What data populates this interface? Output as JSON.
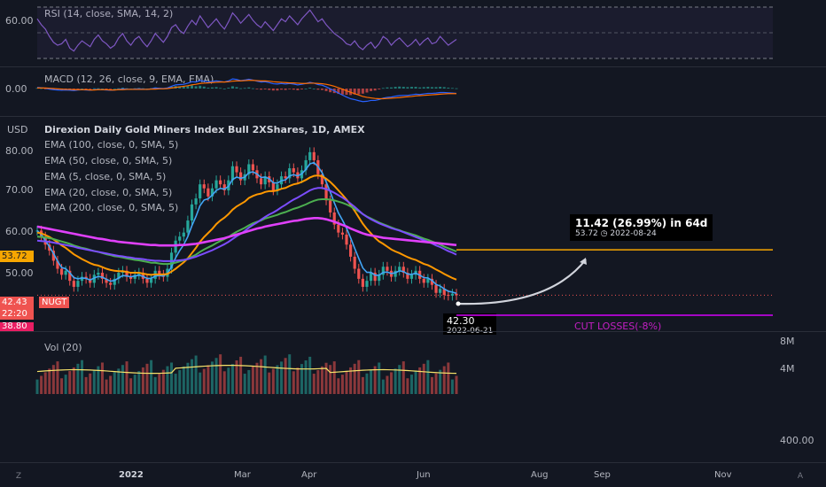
{
  "rsi": {
    "label": "RSI (14, close, SMA, 14, 2)",
    "tick": "60.00",
    "color": "#7e57c2",
    "values": [
      62,
      58,
      55,
      50,
      46,
      44,
      45,
      48,
      42,
      40,
      44,
      47,
      45,
      43,
      48,
      51,
      47,
      45,
      42,
      44,
      49,
      52,
      47,
      44,
      48,
      50,
      46,
      43,
      47,
      52,
      49,
      46,
      50,
      56,
      58,
      54,
      52,
      57,
      61,
      58,
      64,
      60,
      56,
      59,
      62,
      58,
      55,
      60,
      66,
      63,
      59,
      62,
      65,
      61,
      58,
      56,
      60,
      57,
      54,
      58,
      62,
      60,
      64,
      61,
      58,
      62,
      65,
      68,
      64,
      60,
      62,
      58,
      55,
      52,
      50,
      48,
      45,
      44,
      47,
      43,
      41,
      44,
      46,
      42,
      45,
      50,
      48,
      44,
      47,
      49,
      46,
      43,
      45,
      48,
      44,
      47,
      49,
      45,
      46,
      50,
      47,
      44,
      46,
      48
    ]
  },
  "macd": {
    "label": "MACD (12, 26, close, 9, EMA, EMA)",
    "tick": "0.00",
    "macd_color": "#2962ff",
    "signal_color": "#ff6d00",
    "macd": [
      0.4,
      0.3,
      0.1,
      -0.2,
      -0.4,
      -0.5,
      -0.6,
      -0.5,
      -0.6,
      -0.7,
      -0.5,
      -0.4,
      -0.5,
      -0.6,
      -0.4,
      -0.3,
      -0.4,
      -0.5,
      -0.6,
      -0.5,
      -0.3,
      -0.1,
      -0.2,
      -0.3,
      -0.2,
      -0.1,
      -0.2,
      -0.3,
      -0.1,
      0.2,
      0.1,
      0.0,
      0.2,
      0.8,
      1.3,
      1.4,
      1.5,
      1.9,
      2.4,
      2.3,
      2.8,
      2.6,
      2.3,
      2.5,
      2.7,
      2.5,
      2.3,
      2.7,
      3.4,
      3.2,
      2.8,
      3.0,
      3.3,
      3.0,
      2.6,
      2.3,
      2.4,
      2.1,
      1.7,
      1.6,
      1.8,
      1.6,
      1.8,
      1.6,
      1.3,
      1.5,
      1.8,
      2.2,
      1.9,
      1.4,
      1.2,
      0.6,
      -0.1,
      -0.8,
      -1.6,
      -2.3,
      -3.0,
      -3.6,
      -3.9,
      -4.3,
      -4.6,
      -4.5,
      -4.2,
      -4.2,
      -3.9,
      -3.4,
      -3.1,
      -3.0,
      -2.7,
      -2.5,
      -2.4,
      -2.4,
      -2.2,
      -2.0,
      -2.1,
      -1.9,
      -1.7,
      -1.7,
      -1.6,
      -1.4,
      -1.4,
      -1.5,
      -1.6,
      -1.7
    ],
    "signal": [
      0.2,
      0.2,
      0.2,
      0.1,
      0.0,
      -0.1,
      -0.2,
      -0.3,
      -0.3,
      -0.4,
      -0.4,
      -0.4,
      -0.4,
      -0.5,
      -0.5,
      -0.4,
      -0.4,
      -0.4,
      -0.5,
      -0.5,
      -0.4,
      -0.4,
      -0.3,
      -0.3,
      -0.3,
      -0.3,
      -0.3,
      -0.3,
      -0.2,
      -0.2,
      -0.1,
      -0.1,
      0.0,
      0.2,
      0.4,
      0.6,
      0.8,
      1.0,
      1.3,
      1.5,
      1.8,
      1.9,
      2.0,
      2.1,
      2.2,
      2.3,
      2.3,
      2.4,
      2.6,
      2.7,
      2.7,
      2.8,
      2.9,
      2.9,
      2.8,
      2.7,
      2.7,
      2.6,
      2.4,
      2.3,
      2.2,
      2.1,
      2.0,
      2.0,
      1.9,
      1.8,
      1.8,
      1.9,
      1.9,
      1.8,
      1.7,
      1.5,
      1.2,
      0.8,
      0.3,
      -0.2,
      -0.8,
      -1.3,
      -1.8,
      -2.3,
      -2.8,
      -3.1,
      -3.3,
      -3.5,
      -3.6,
      -3.6,
      -3.5,
      -3.4,
      -3.3,
      -3.2,
      -3.0,
      -2.9,
      -2.8,
      -2.6,
      -2.5,
      -2.4,
      -2.3,
      -2.2,
      -2.1,
      -2.0,
      -1.9,
      -1.8,
      -1.8,
      -1.8
    ]
  },
  "main": {
    "unit_label": "USD",
    "title": "Direxion Daily Gold Miners Index Bull 2XShares, 1D, AMEX",
    "ema_labels": [
      "EMA (100, close, 0, SMA, 5)",
      "EMA (50, close, 0, SMA, 5)",
      "EMA (5, close, 0, SMA, 5)",
      "EMA (20, close, 0, SMA, 5)",
      "EMA (200, close, 0, SMA, 5)"
    ],
    "y_ticks": [
      "80.00",
      "70.00",
      "60.00",
      "50.00"
    ],
    "price_tags": {
      "target": {
        "text": "53.72",
        "color": "#f7a600"
      },
      "last": {
        "text": "42.43",
        "color": "#ef5350"
      },
      "countdown": {
        "text": "22:20",
        "color": "#ef5350"
      },
      "stop": {
        "text": "38.80",
        "color": "#e91e63"
      }
    },
    "symbol_badge": "NUGT",
    "low_label": "42.30",
    "low_date": "2022-06-21",
    "projection_tooltip": {
      "headline": "11.42 (26.99%) in 64d",
      "detail_price": "53.72",
      "detail_date": "2022-08-24"
    },
    "cut_losses_label": "CUT LOSSES(-8%)",
    "target_line_color": "#f7a600",
    "stop_line_color": "#d500f9"
  },
  "volume": {
    "label": "Vol (20)",
    "ticks": [
      "8M",
      "4M",
      "400.00"
    ],
    "ma_color": "#f7e36a"
  },
  "x_axis": {
    "labels": [
      "2022",
      "Mar",
      "Apr",
      "Jun",
      "Aug",
      "Sep",
      "Nov"
    ]
  },
  "chart_data": {
    "type": "line",
    "title": "Direxion Daily Gold Miners Index Bull 2XShares, 1D, AMEX",
    "ylabel": "USD",
    "ylim": [
      37,
      87
    ],
    "x_start": "2021-10-28",
    "series": [
      {
        "name": "Close",
        "color": "#42a5f5",
        "values": [
          58.5,
          57.0,
          55.0,
          53.5,
          51.0,
          49.0,
          47.5,
          48.5,
          46.0,
          44.5,
          46.0,
          47.0,
          46.5,
          45.5,
          47.5,
          48.0,
          46.5,
          45.5,
          45.0,
          46.5,
          48.0,
          48.5,
          47.0,
          46.5,
          47.5,
          48.0,
          46.5,
          45.5,
          46.5,
          48.5,
          47.5,
          47.0,
          49.0,
          53.0,
          56.0,
          57.0,
          58.0,
          61.0,
          65.0,
          66.5,
          70.0,
          69.0,
          67.0,
          69.0,
          71.0,
          70.0,
          68.5,
          71.0,
          74.5,
          73.0,
          71.0,
          72.5,
          75.0,
          73.5,
          71.5,
          70.0,
          72.0,
          70.5,
          68.5,
          70.0,
          72.0,
          71.5,
          74.0,
          73.0,
          71.5,
          73.5,
          76.0,
          78.0,
          76.0,
          72.5,
          70.0,
          66.0,
          63.0,
          60.0,
          58.0,
          57.5,
          55.0,
          52.0,
          49.0,
          46.5,
          44.5,
          46.0,
          48.0,
          46.0,
          47.5,
          49.5,
          48.5,
          47.0,
          48.5,
          49.5,
          48.0,
          46.5,
          47.5,
          48.5,
          46.5,
          45.5,
          46.5,
          45.0,
          43.0,
          44.0,
          42.5,
          42.3,
          42.8,
          42.4
        ]
      },
      {
        "name": "EMA (5, close, 0, SMA, 5)",
        "color": "#42a5f5",
        "values": [
          58.5,
          57.5,
          56.0,
          54.5,
          52.8,
          50.9,
          49.3,
          49.0,
          48.0,
          46.8,
          46.5,
          46.7,
          46.6,
          46.2,
          46.7,
          47.1,
          46.9,
          46.4,
          45.9,
          46.1,
          46.7,
          47.3,
          47.2,
          47.0,
          47.2,
          47.4,
          47.1,
          46.6,
          46.6,
          47.2,
          47.3,
          47.2,
          47.8,
          49.5,
          51.7,
          53.5,
          55.0,
          57.0,
          59.7,
          62.0,
          64.7,
          66.1,
          66.4,
          67.3,
          68.5,
          69.0,
          68.8,
          69.5,
          71.2,
          71.8,
          71.5,
          71.8,
          72.9,
          73.1,
          72.6,
          71.7,
          71.8,
          71.4,
          70.4,
          70.3,
          70.9,
          71.1,
          72.1,
          72.4,
          72.1,
          72.6,
          73.7,
          75.1,
          75.4,
          74.4,
          72.9,
          70.6,
          68.1,
          65.4,
          62.9,
          61.1,
          59.1,
          56.7,
          54.1,
          51.6,
          49.2,
          48.1,
          48.1,
          47.4,
          47.4,
          48.1,
          48.2,
          47.8,
          48.0,
          48.5,
          48.3,
          47.7,
          47.6,
          47.9,
          47.4,
          46.8,
          46.7,
          46.1,
          45.1,
          44.7,
          44.0,
          43.4,
          43.2,
          42.9
        ]
      },
      {
        "name": "EMA (20, close, 0, SMA, 5)",
        "color": "#ff9800",
        "values": [
          58.0,
          57.8,
          57.4,
          56.9,
          56.3,
          55.6,
          54.8,
          54.2,
          53.4,
          52.6,
          52.0,
          51.4,
          50.9,
          50.4,
          50.0,
          49.8,
          49.4,
          49.0,
          48.7,
          48.5,
          48.4,
          48.4,
          48.2,
          48.0,
          48.0,
          48.0,
          47.8,
          47.6,
          47.5,
          47.6,
          47.6,
          47.6,
          47.7,
          48.3,
          49.0,
          49.8,
          50.6,
          51.6,
          52.9,
          54.2,
          55.7,
          56.9,
          57.9,
          58.9,
          60.1,
          61.0,
          61.7,
          62.6,
          63.7,
          64.5,
          65.1,
          65.7,
          66.6,
          67.1,
          67.5,
          67.7,
          68.1,
          68.3,
          68.3,
          68.5,
          68.9,
          69.1,
          69.6,
          70.0,
          70.2,
          70.6,
          71.1,
          71.7,
          72.1,
          72.2,
          72.0,
          71.4,
          70.6,
          69.6,
          68.5,
          67.4,
          66.2,
          64.9,
          63.4,
          61.8,
          60.2,
          58.9,
          57.8,
          56.7,
          55.8,
          55.2,
          54.5,
          53.8,
          53.3,
          52.9,
          52.4,
          51.9,
          51.5,
          51.2,
          50.7,
          50.2,
          49.9,
          49.4,
          48.8,
          48.3,
          47.7,
          47.2,
          46.7,
          46.3
        ]
      },
      {
        "name": "EMA (50, close, 0, SMA, 5)",
        "color": "#4caf50",
        "values": [
          57.0,
          56.9,
          56.8,
          56.6,
          56.4,
          56.1,
          55.8,
          55.5,
          55.2,
          54.8,
          54.5,
          54.2,
          54.0,
          53.7,
          53.4,
          53.2,
          52.9,
          52.6,
          52.4,
          52.1,
          52.0,
          51.8,
          51.6,
          51.4,
          51.2,
          51.1,
          50.9,
          50.7,
          50.5,
          50.5,
          50.3,
          50.2,
          50.2,
          50.3,
          50.5,
          50.8,
          51.1,
          51.5,
          52.0,
          52.5,
          53.2,
          53.8,
          54.3,
          54.8,
          55.4,
          55.9,
          56.4,
          56.9,
          57.6,
          58.2,
          58.7,
          59.2,
          59.8,
          60.3,
          60.7,
          61.0,
          61.5,
          61.8,
          62.1,
          62.4,
          62.8,
          63.1,
          63.5,
          63.9,
          64.2,
          64.6,
          65.0,
          65.5,
          65.9,
          66.2,
          66.3,
          66.3,
          66.2,
          66.0,
          65.7,
          65.4,
          65.0,
          64.5,
          63.9,
          63.3,
          62.6,
          62.0,
          61.5,
          61.0,
          60.5,
          60.1,
          59.7,
          59.3,
          58.9,
          58.6,
          58.2,
          57.9,
          57.6,
          57.3,
          56.9,
          56.5,
          56.2,
          55.8,
          55.4,
          55.0,
          54.5,
          54.1,
          53.7,
          53.3
        ]
      },
      {
        "name": "EMA (100, close, 0, SMA, 5)",
        "color": "#7c4dff",
        "values": [
          56.0,
          55.9,
          55.8,
          55.7,
          55.5,
          55.3,
          55.1,
          54.9,
          54.7,
          54.5,
          54.2,
          54.0,
          53.8,
          53.6,
          53.4,
          53.2,
          53.0,
          52.8,
          52.6,
          52.4,
          52.2,
          52.1,
          51.9,
          51.8,
          51.6,
          51.5,
          51.4,
          51.2,
          51.1,
          51.0,
          51.0,
          50.9,
          50.9,
          50.9,
          51.0,
          51.1,
          51.2,
          51.4,
          51.7,
          52.0,
          52.4,
          52.8,
          53.2,
          53.6,
          54.1,
          54.6,
          55.1,
          55.7,
          56.4,
          57.1,
          57.7,
          58.4,
          59.2,
          59.9,
          60.5,
          61.2,
          61.9,
          62.5,
          63.0,
          63.6,
          64.3,
          64.9,
          65.6,
          66.2,
          66.7,
          67.3,
          67.9,
          68.5,
          68.9,
          69.1,
          69.1,
          68.8,
          68.4,
          67.9,
          67.3,
          66.7,
          66.0,
          65.2,
          64.4,
          63.5,
          62.6,
          61.9,
          61.3,
          60.8,
          60.3,
          59.9,
          59.5,
          59.1,
          58.8,
          58.5,
          58.1,
          57.7,
          57.3,
          56.9,
          56.5,
          56.1,
          55.7,
          55.3,
          54.8,
          54.4,
          53.9,
          53.4,
          53.0,
          52.5
        ]
      },
      {
        "name": "EMA (200, close, 0, SMA, 5)",
        "color": "#e040fb",
        "values": [
          59.5,
          59.3,
          59.1,
          58.9,
          58.7,
          58.5,
          58.3,
          58.1,
          57.9,
          57.7,
          57.5,
          57.3,
          57.1,
          56.9,
          56.7,
          56.5,
          56.4,
          56.2,
          56.0,
          55.9,
          55.7,
          55.6,
          55.5,
          55.4,
          55.3,
          55.2,
          55.1,
          55.0,
          54.9,
          54.9,
          54.8,
          54.8,
          54.8,
          54.8,
          54.8,
          54.9,
          54.9,
          55.0,
          55.1,
          55.2,
          55.4,
          55.6,
          55.8,
          56.0,
          56.2,
          56.4,
          56.6,
          56.9,
          57.2,
          57.5,
          57.8,
          58.1,
          58.4,
          58.7,
          59.0,
          59.2,
          59.5,
          59.7,
          59.9,
          60.1,
          60.3,
          60.5,
          60.7,
          60.9,
          61.0,
          61.2,
          61.4,
          61.5,
          61.6,
          61.6,
          61.5,
          61.3,
          61.0,
          60.7,
          60.3,
          59.9,
          59.5,
          59.0,
          58.6,
          58.2,
          57.8,
          57.5,
          57.3,
          57.1,
          56.9,
          56.7,
          56.6,
          56.5,
          56.4,
          56.3,
          56.2,
          56.1,
          56.0,
          55.9,
          55.8,
          55.7,
          55.6,
          55.5,
          55.4,
          55.3,
          55.2,
          55.1,
          55.0,
          54.9
        ]
      }
    ],
    "hlines": [
      {
        "label": "target",
        "value": 53.72,
        "color": "#f7a600"
      },
      {
        "label": "stop",
        "value": 38.8,
        "color": "#d500f9"
      }
    ]
  }
}
